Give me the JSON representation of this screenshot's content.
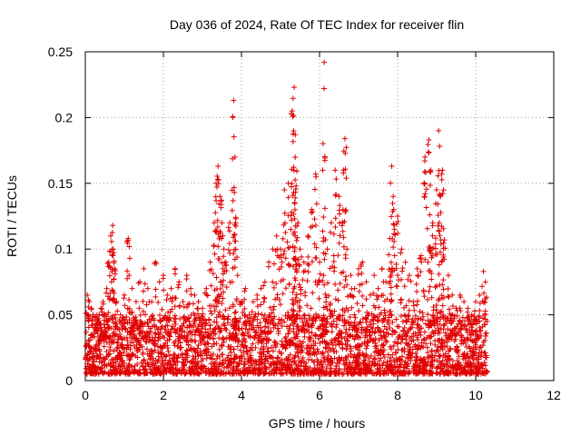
{
  "chart_data": {
    "type": "scatter",
    "title": "Day 036 of 2024, Rate Of TEC Index for receiver flin",
    "xlabel": "GPS time / hours",
    "ylabel": "ROTI / TECUs",
    "xlim": [
      0,
      12
    ],
    "ylim": [
      0,
      0.25
    ],
    "xticks": [
      0,
      2,
      4,
      6,
      8,
      10,
      12
    ],
    "xtick_labels": [
      "0",
      "2",
      "4",
      "6",
      "8",
      "10",
      "12"
    ],
    "yticks": [
      0,
      0.05,
      0.1,
      0.15,
      0.2,
      0.25
    ],
    "ytick_labels": [
      "0",
      "0.05",
      "0.1",
      "0.15",
      "0.2",
      "0.25"
    ],
    "grid": true,
    "marker": "+",
    "marker_color": "#e00000",
    "series": [
      {
        "name": "ROTI",
        "x": [
          0.05,
          0.1,
          0.15,
          0.2,
          0.25,
          0.3,
          0.35,
          0.4,
          0.45,
          0.5,
          0.55,
          0.6,
          0.65,
          0.7,
          0.72,
          0.75,
          0.8,
          0.9,
          1.0,
          1.1,
          1.12,
          1.2,
          1.3,
          1.4,
          1.5,
          1.6,
          1.7,
          1.8,
          1.9,
          2.0,
          2.1,
          2.2,
          2.3,
          2.4,
          2.5,
          2.6,
          2.7,
          2.8,
          2.9,
          3.0,
          3.1,
          3.2,
          3.3,
          3.35,
          3.4,
          3.45,
          3.5,
          3.55,
          3.6,
          3.7,
          3.8,
          3.82,
          3.85,
          3.9,
          4.0,
          4.1,
          4.2,
          4.3,
          4.4,
          4.5,
          4.6,
          4.7,
          4.8,
          4.9,
          5.0,
          5.1,
          5.2,
          5.3,
          5.35,
          5.38,
          5.4,
          5.45,
          5.5,
          5.6,
          5.7,
          5.8,
          5.9,
          6.0,
          6.1,
          6.12,
          6.2,
          6.3,
          6.4,
          6.5,
          6.6,
          6.65,
          6.7,
          6.8,
          6.9,
          7.0,
          7.1,
          7.2,
          7.3,
          7.4,
          7.5,
          7.6,
          7.7,
          7.8,
          7.85,
          7.9,
          8.0,
          8.1,
          8.2,
          8.3,
          8.4,
          8.5,
          8.6,
          8.7,
          8.8,
          8.85,
          8.9,
          9.0,
          9.05,
          9.1,
          9.15,
          9.2,
          9.3,
          9.4,
          9.5,
          9.6,
          9.7,
          9.8,
          9.9,
          10.0,
          10.1,
          10.2,
          10.25
        ],
        "y": [
          0.065,
          0.06,
          0.055,
          0.05,
          0.048,
          0.05,
          0.045,
          0.055,
          0.06,
          0.05,
          0.07,
          0.09,
          0.11,
          0.118,
          0.1,
          0.085,
          0.06,
          0.05,
          0.065,
          0.108,
          0.08,
          0.07,
          0.06,
          0.075,
          0.085,
          0.07,
          0.06,
          0.09,
          0.075,
          0.08,
          0.065,
          0.07,
          0.085,
          0.075,
          0.06,
          0.08,
          0.07,
          0.065,
          0.06,
          0.055,
          0.07,
          0.09,
          0.12,
          0.15,
          0.163,
          0.14,
          0.12,
          0.1,
          0.09,
          0.12,
          0.213,
          0.143,
          0.12,
          0.08,
          0.06,
          0.07,
          0.05,
          0.06,
          0.065,
          0.07,
          0.075,
          0.09,
          0.1,
          0.11,
          0.1,
          0.145,
          0.15,
          0.205,
          0.223,
          0.187,
          0.148,
          0.12,
          0.1,
          0.09,
          0.11,
          0.13,
          0.157,
          0.09,
          0.08,
          0.242,
          0.1,
          0.12,
          0.16,
          0.14,
          0.13,
          0.184,
          0.1,
          0.08,
          0.07,
          0.085,
          0.09,
          0.075,
          0.065,
          0.08,
          0.07,
          0.085,
          0.075,
          0.108,
          0.163,
          0.13,
          0.125,
          0.1,
          0.09,
          0.08,
          0.06,
          0.085,
          0.095,
          0.17,
          0.183,
          0.16,
          0.12,
          0.145,
          0.19,
          0.14,
          0.16,
          0.107,
          0.08,
          0.065,
          0.055,
          0.065,
          0.06,
          0.055,
          0.05,
          0.06,
          0.065,
          0.083,
          0.075
        ]
      }
    ],
    "background_band": {
      "x_range": [
        0,
        10.3
      ],
      "y_range": [
        0.005,
        0.05
      ],
      "description": "dense cluster of points filling this band"
    }
  }
}
